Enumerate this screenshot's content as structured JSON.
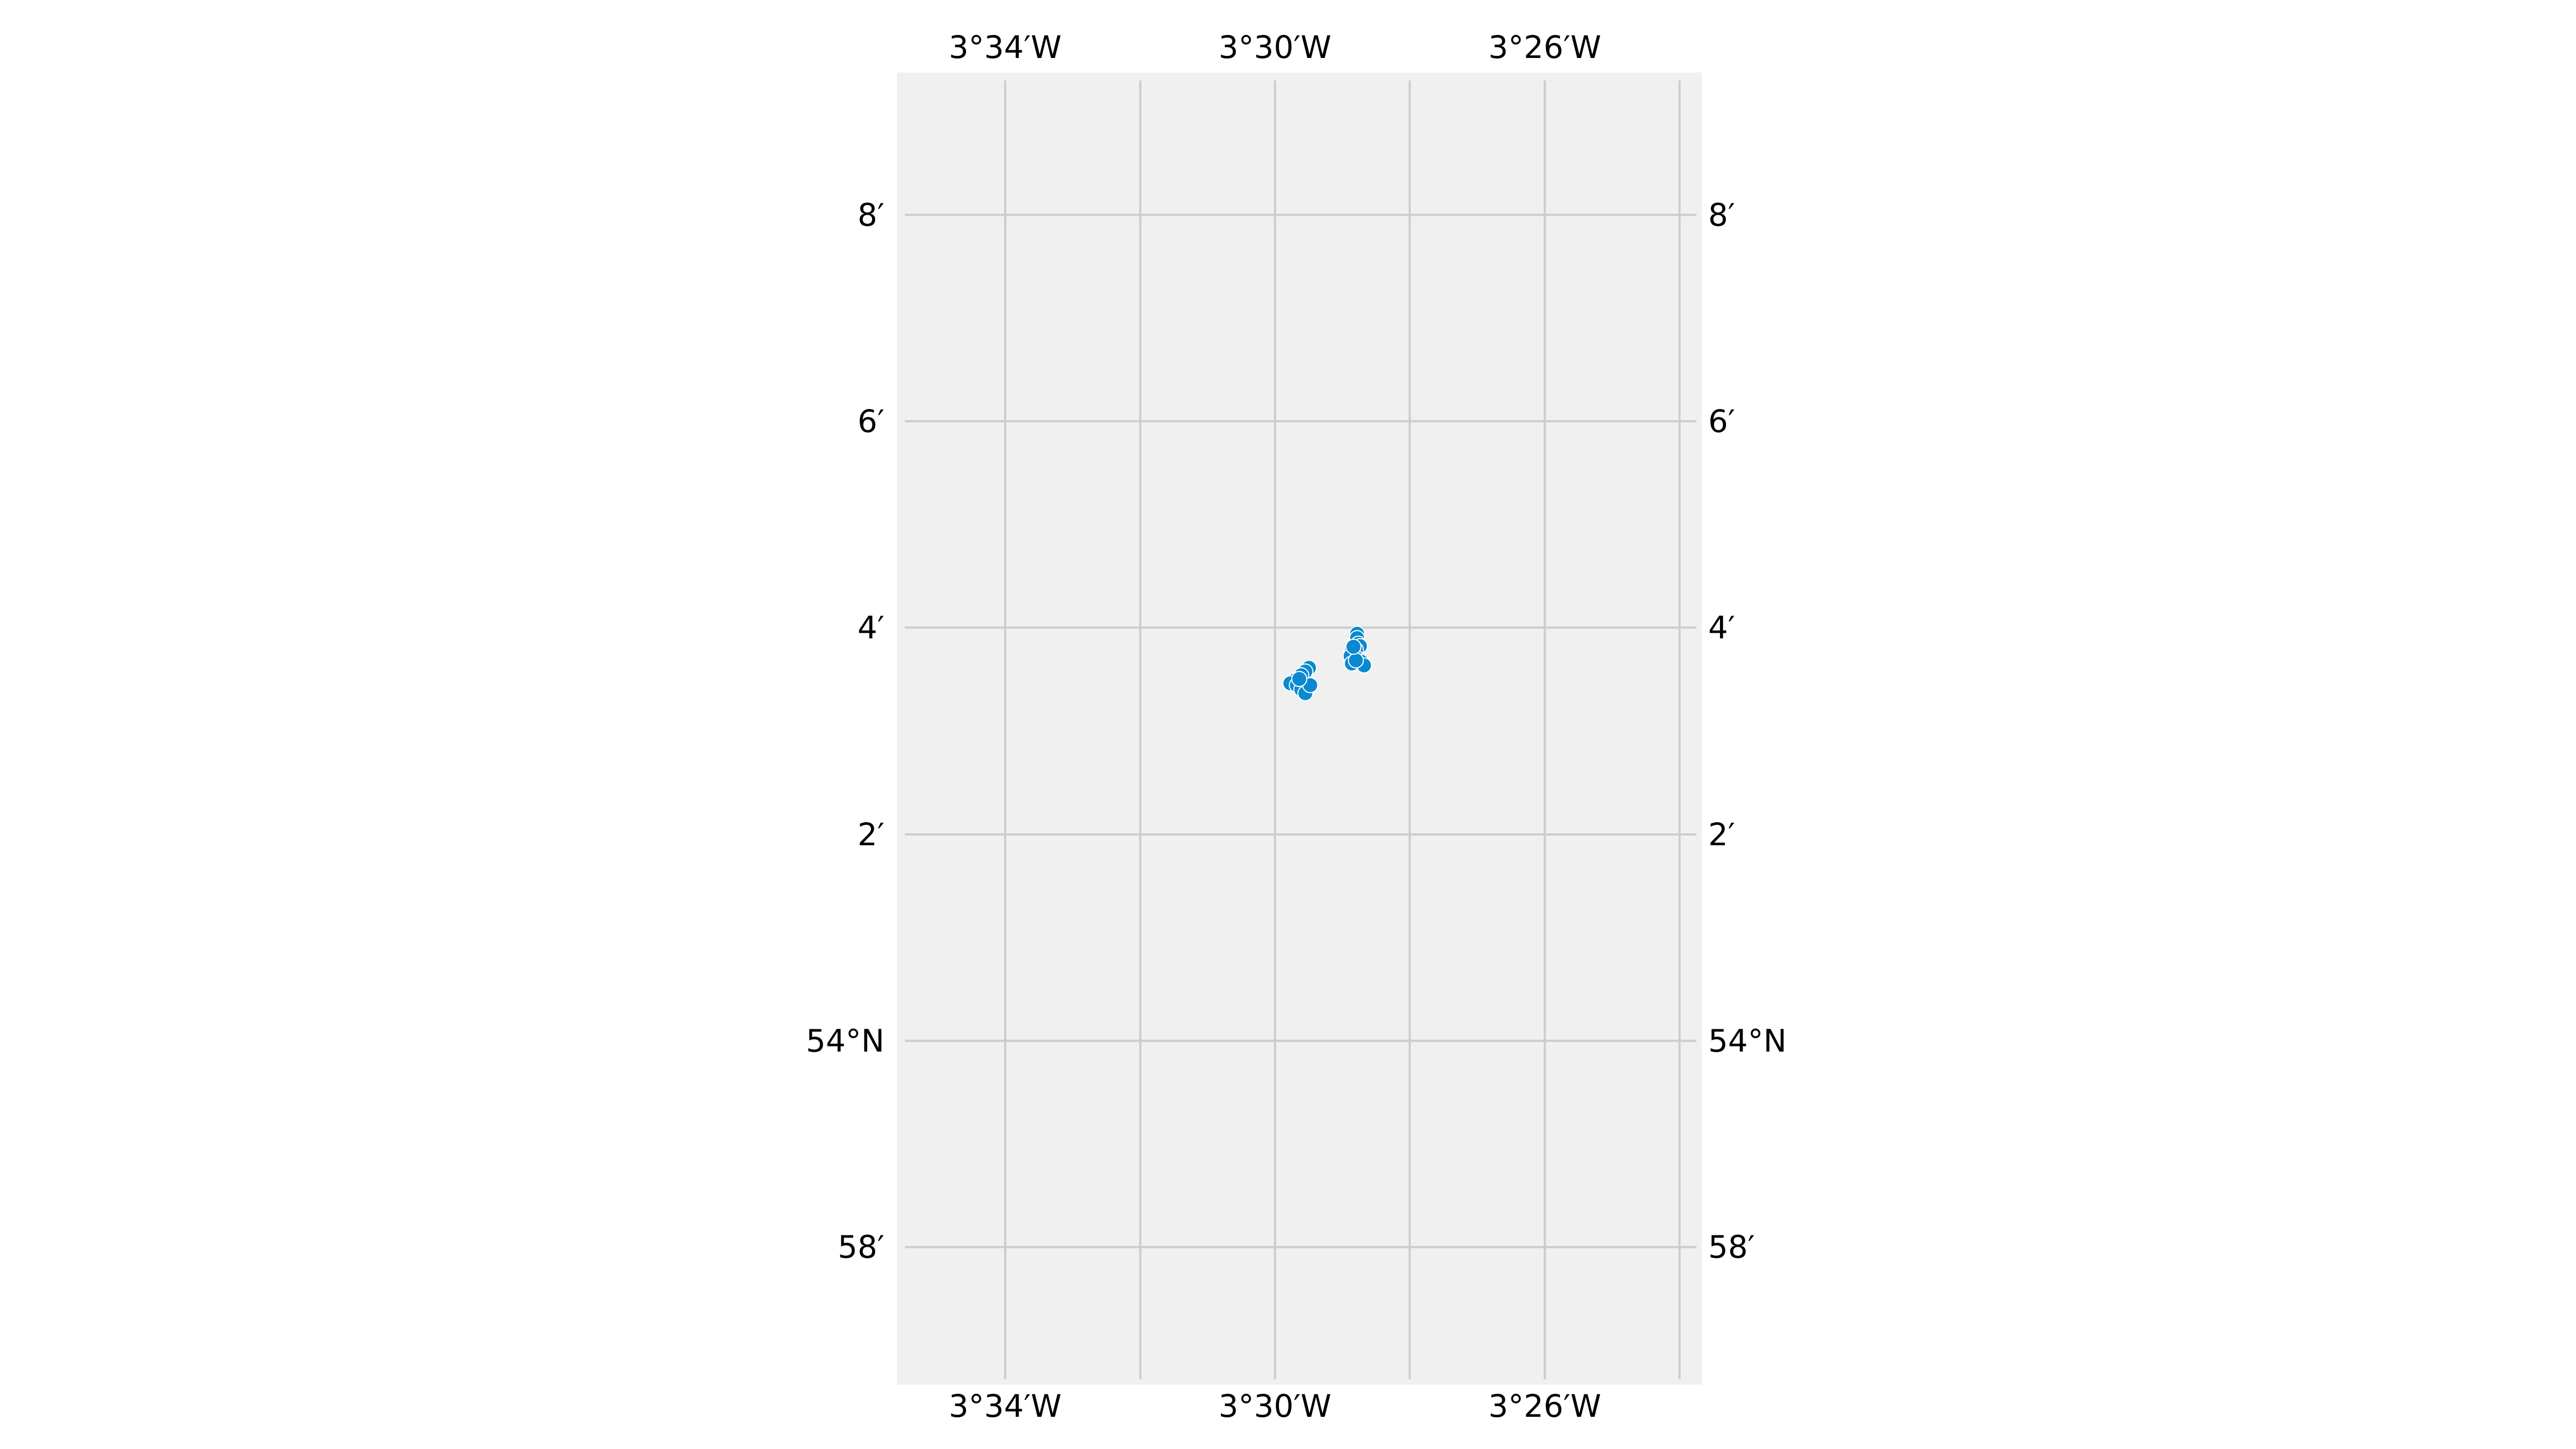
{
  "map": {
    "extent": {
      "lon_min": -3.5935,
      "lon_max": -3.3945,
      "lat_min": 53.9445,
      "lat_max": 54.1563
    },
    "background_color": "#f0f0f0",
    "grid_color": "#cccccc",
    "grid": true,
    "marker_color": "#0a89d0",
    "lon_gridlines": [
      -3.5667,
      -3.5333,
      -3.5,
      -3.4667,
      -3.4333,
      -3.4
    ],
    "lat_gridlines": [
      53.9667,
      54.0,
      54.0333,
      54.0667,
      54.1,
      54.1333
    ],
    "lon_tick_labels": [
      {
        "lon": -3.5667,
        "text": "3°34′W"
      },
      {
        "lon": -3.5,
        "text": "3°30′W"
      },
      {
        "lon": -3.4333,
        "text": "3°26′W"
      }
    ],
    "lat_tick_labels": [
      {
        "lat": 54.1333,
        "text": "8′"
      },
      {
        "lat": 54.1,
        "text": "6′"
      },
      {
        "lat": 54.0667,
        "text": "4′"
      },
      {
        "lat": 54.0333,
        "text": "2′"
      },
      {
        "lat": 54.0,
        "text": "54°N"
      },
      {
        "lat": 53.9667,
        "text": "58′"
      }
    ],
    "points": [
      {
        "lon": -3.4797,
        "lat": 54.0657
      },
      {
        "lon": -3.4797,
        "lat": 54.065
      },
      {
        "lon": -3.4794,
        "lat": 54.0641
      },
      {
        "lon": -3.479,
        "lat": 54.0637
      },
      {
        "lon": -3.48,
        "lat": 54.0631
      },
      {
        "lon": -3.481,
        "lat": 54.0629
      },
      {
        "lon": -3.4805,
        "lat": 54.0622
      },
      {
        "lon": -3.4813,
        "lat": 54.0621
      },
      {
        "lon": -3.4797,
        "lat": 54.0617
      },
      {
        "lon": -3.4787,
        "lat": 54.0612
      },
      {
        "lon": -3.478,
        "lat": 54.0606
      },
      {
        "lon": -3.481,
        "lat": 54.0609
      },
      {
        "lon": -3.48,
        "lat": 54.0614
      },
      {
        "lon": -3.4806,
        "lat": 54.0636
      },
      {
        "lon": -3.4916,
        "lat": 54.0602
      },
      {
        "lon": -3.4925,
        "lat": 54.0596
      },
      {
        "lon": -3.4935,
        "lat": 54.059
      },
      {
        "lon": -3.495,
        "lat": 54.0582
      },
      {
        "lon": -3.4962,
        "lat": 54.0577
      },
      {
        "lon": -3.4946,
        "lat": 54.0574
      },
      {
        "lon": -3.4935,
        "lat": 54.0567
      },
      {
        "lon": -3.4925,
        "lat": 54.0561
      },
      {
        "lon": -3.4913,
        "lat": 54.0574
      },
      {
        "lon": -3.494,
        "lat": 54.0584
      }
    ]
  }
}
